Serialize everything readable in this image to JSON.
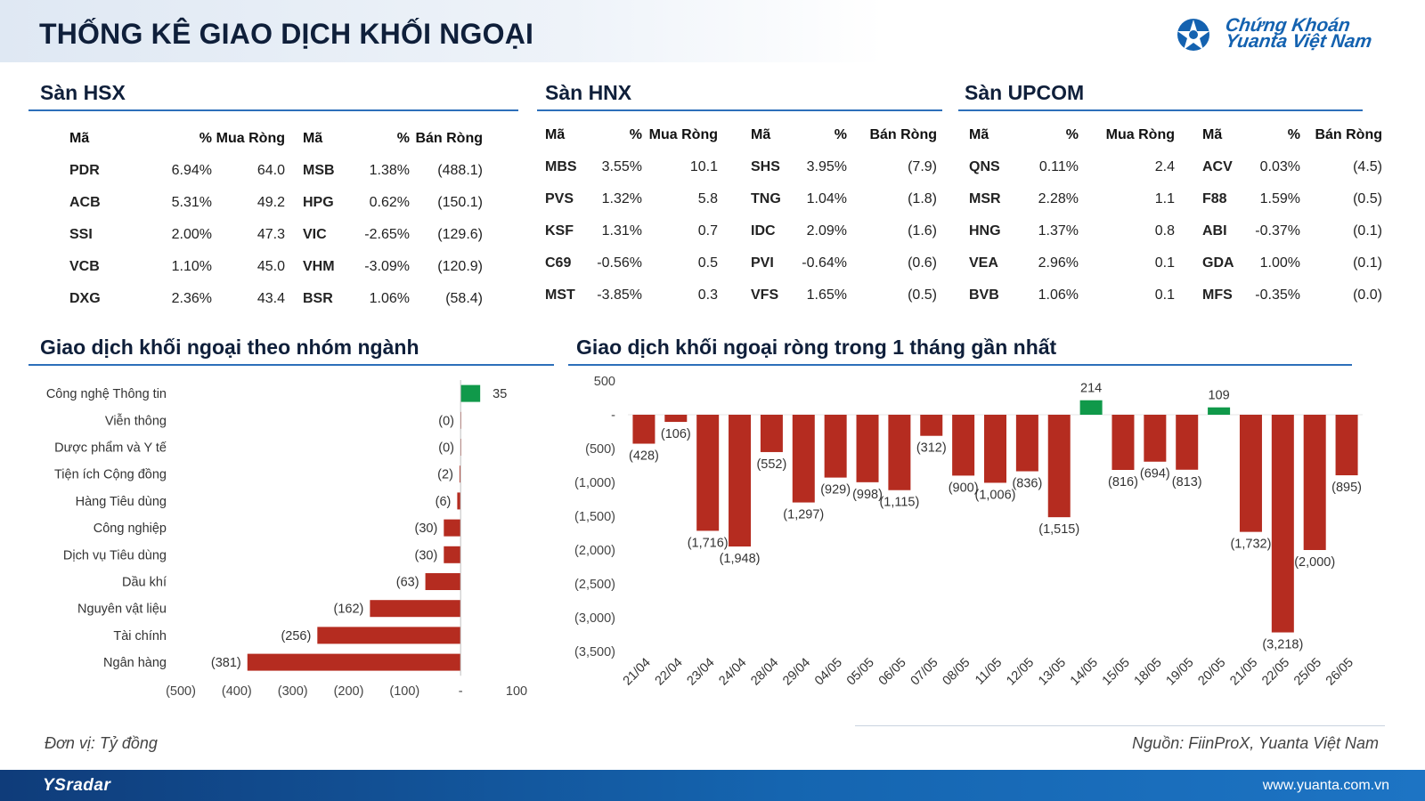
{
  "header": {
    "title": "THỐNG KÊ GIAO DỊCH KHỐI NGOẠI"
  },
  "logo": {
    "line1": "Chứng Khoán",
    "line2": "Yuanta Việt Nam",
    "icon": "yuanta-star-logo"
  },
  "colors": {
    "positive": "#159447",
    "negative": "#c0281e",
    "bar_negative": "#b52c20",
    "bar_positive": "#10994a",
    "accent": "#2d6fba"
  },
  "markets": [
    {
      "title": "Sàn HSX",
      "headers": [
        "Mã",
        "%",
        "Mua Ròng",
        "Mã",
        "%",
        "Bán Ròng"
      ],
      "rows": [
        {
          "buy_ticker": "PDR",
          "buy_pct": "6.94%",
          "buy_value": "64.0",
          "sell_ticker": "MSB",
          "sell_pct": "1.38%",
          "sell_value": "(488.1)"
        },
        {
          "buy_ticker": "ACB",
          "buy_pct": "5.31%",
          "buy_value": "49.2",
          "sell_ticker": "HPG",
          "sell_pct": "0.62%",
          "sell_value": "(150.1)"
        },
        {
          "buy_ticker": "SSI",
          "buy_pct": "2.00%",
          "buy_value": "47.3",
          "sell_ticker": "VIC",
          "sell_pct": "-2.65%",
          "sell_value": "(129.6)"
        },
        {
          "buy_ticker": "VCB",
          "buy_pct": "1.10%",
          "buy_value": "45.0",
          "sell_ticker": "VHM",
          "sell_pct": "-3.09%",
          "sell_value": "(120.9)"
        },
        {
          "buy_ticker": "DXG",
          "buy_pct": "2.36%",
          "buy_value": "43.4",
          "sell_ticker": "BSR",
          "sell_pct": "1.06%",
          "sell_value": "(58.4)"
        }
      ]
    },
    {
      "title": "Sàn HNX",
      "headers": [
        "Mã",
        "%",
        "Mua Ròng",
        "Mã",
        "%",
        "Bán Ròng"
      ],
      "rows": [
        {
          "buy_ticker": "MBS",
          "buy_pct": "3.55%",
          "buy_value": "10.1",
          "sell_ticker": "SHS",
          "sell_pct": "3.95%",
          "sell_value": "(7.9)"
        },
        {
          "buy_ticker": "PVS",
          "buy_pct": "1.32%",
          "buy_value": "5.8",
          "sell_ticker": "TNG",
          "sell_pct": "1.04%",
          "sell_value": "(1.8)"
        },
        {
          "buy_ticker": "KSF",
          "buy_pct": "1.31%",
          "buy_value": "0.7",
          "sell_ticker": "IDC",
          "sell_pct": "2.09%",
          "sell_value": "(1.6)"
        },
        {
          "buy_ticker": "C69",
          "buy_pct": "-0.56%",
          "buy_value": "0.5",
          "sell_ticker": "PVI",
          "sell_pct": "-0.64%",
          "sell_value": "(0.6)"
        },
        {
          "buy_ticker": "MST",
          "buy_pct": "-3.85%",
          "buy_value": "0.3",
          "sell_ticker": "VFS",
          "sell_pct": "1.65%",
          "sell_value": "(0.5)"
        }
      ]
    },
    {
      "title": "Sàn UPCOM",
      "headers": [
        "Mã",
        "%",
        "Mua Ròng",
        "Mã",
        "%",
        "Bán Ròng"
      ],
      "rows": [
        {
          "buy_ticker": "QNS",
          "buy_pct": "0.11%",
          "buy_value": "2.4",
          "sell_ticker": "ACV",
          "sell_pct": "0.03%",
          "sell_value": "(4.5)"
        },
        {
          "buy_ticker": "MSR",
          "buy_pct": "2.28%",
          "buy_value": "1.1",
          "sell_ticker": "F88",
          "sell_pct": "1.59%",
          "sell_value": "(0.5)"
        },
        {
          "buy_ticker": "HNG",
          "buy_pct": "1.37%",
          "buy_value": "0.8",
          "sell_ticker": "ABI",
          "sell_pct": "-0.37%",
          "sell_value": "(0.1)"
        },
        {
          "buy_ticker": "VEA",
          "buy_pct": "2.96%",
          "buy_value": "0.1",
          "sell_ticker": "GDA",
          "sell_pct": "1.00%",
          "sell_value": "(0.1)"
        },
        {
          "buy_ticker": "BVB",
          "buy_pct": "1.06%",
          "buy_value": "0.1",
          "sell_ticker": "MFS",
          "sell_pct": "-0.35%",
          "sell_value": "(0.0)"
        }
      ]
    }
  ],
  "chart_data": [
    {
      "type": "bar",
      "orientation": "horizontal",
      "title": "Giao dịch khối ngoại theo nhóm ngành",
      "categories": [
        "Công nghệ Thông tin",
        "Viễn thông",
        "Dược phẩm và Y tế",
        "Tiện ích Cộng đồng",
        "Hàng Tiêu dùng",
        "Công nghiệp",
        "Dịch vụ Tiêu dùng",
        "Dầu khí",
        "Nguyên vật liệu",
        "Tài chính",
        "Ngân hàng"
      ],
      "values": [
        35,
        -0.3,
        -0.3,
        -2,
        -6,
        -30,
        -30,
        -63,
        -162,
        -256,
        -381
      ],
      "value_labels": [
        "35",
        "(0)",
        "(0)",
        "(2)",
        "(6)",
        "(30)",
        "(30)",
        "(63)",
        "(162)",
        "(256)",
        "(381)"
      ],
      "xlim": [
        -500,
        100
      ],
      "xticks": [
        -500,
        -400,
        -300,
        -200,
        -100,
        0,
        100
      ],
      "xtick_labels": [
        "(500)",
        "(400)",
        "(300)",
        "(200)",
        "(100)",
        "-",
        "100"
      ],
      "grid": false
    },
    {
      "type": "bar",
      "title": "Giao dịch khối ngoại ròng trong 1 tháng gần nhất",
      "categories": [
        "21/04",
        "22/04",
        "23/04",
        "24/04",
        "28/04",
        "29/04",
        "04/05",
        "05/05",
        "06/05",
        "07/05",
        "08/05",
        "11/05",
        "12/05",
        "13/05",
        "14/05",
        "15/05",
        "18/05",
        "19/05",
        "20/05",
        "21/05",
        "22/05",
        "25/05",
        "26/05"
      ],
      "values": [
        -428,
        -106,
        -1716,
        -1948,
        -552,
        -1297,
        -929,
        -998,
        -1115,
        -312,
        -900,
        -1006,
        -836,
        -1515,
        214,
        -816,
        -694,
        -813,
        109,
        -1732,
        -3218,
        -2000,
        -895
      ],
      "value_labels": [
        "(428)",
        "(106)",
        "(1,716)",
        "(1,948)",
        "(552)",
        "(1,297)",
        "(929)",
        "(998)",
        "(1,115)",
        "(312)",
        "(900)",
        "(1,006)",
        "(836)",
        "(1,515)",
        "214",
        "(816)",
        "(694)",
        "(813)",
        "109",
        "(1,732)",
        "(3,218)",
        "(2,000)",
        "(895)"
      ],
      "ylim": [
        -3500,
        500
      ],
      "yticks": [
        500,
        0,
        -500,
        -1000,
        -1500,
        -2000,
        -2500,
        -3000,
        -3500
      ],
      "ytick_labels": [
        "500",
        "-",
        "(500)",
        "(1,000)",
        "(1,500)",
        "(2,000)",
        "(2,500)",
        "(3,000)",
        "(3,500)"
      ],
      "grid": false
    }
  ],
  "footnotes": {
    "unit": "Đơn vị: Tỷ đồng",
    "source": "Nguồn: FiinProX, Yuanta Việt Nam"
  },
  "footer": {
    "brand": "YSradar",
    "website": "www.yuanta.com.vn"
  }
}
